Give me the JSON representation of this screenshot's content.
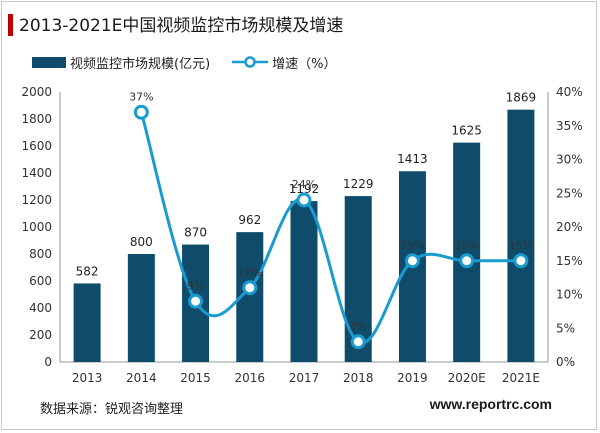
{
  "title": "2013-2021E中国视频监控市场规模及增速",
  "legend": {
    "bar_label": "视频监控市场规模(亿元)",
    "line_label": "增速（%）"
  },
  "source": "数据来源：锐观咨询整理",
  "website": "www.reportrc.com",
  "colors": {
    "bar": "#0f4c6b",
    "line": "#1a9bd0",
    "title_accent": "#c00000"
  },
  "chart_data": {
    "type": "bar",
    "categories": [
      "2013",
      "2014",
      "2015",
      "2016",
      "2017",
      "2018",
      "2019",
      "2020E",
      "2021E"
    ],
    "series": [
      {
        "name": "视频监控市场规模(亿元)",
        "type": "bar",
        "axis": "left",
        "values": [
          582,
          800,
          870,
          962,
          1192,
          1229,
          1413,
          1625,
          1869
        ]
      },
      {
        "name": "增速（%）",
        "type": "line",
        "axis": "right",
        "values": [
          null,
          37,
          9,
          11,
          24,
          3,
          15,
          15,
          15
        ],
        "labels": [
          "",
          "37%",
          "9%",
          "11%",
          "24%",
          "3%",
          "15%",
          "15%",
          "15%"
        ]
      }
    ],
    "y_left": {
      "min": 0,
      "max": 2000,
      "step": 200,
      "ticks": [
        "0",
        "200",
        "400",
        "600",
        "800",
        "1000",
        "1200",
        "1400",
        "1600",
        "1800",
        "2000"
      ]
    },
    "y_right": {
      "min": 0,
      "max": 40,
      "step": 5,
      "ticks": [
        "0%",
        "5%",
        "10%",
        "15%",
        "20%",
        "25%",
        "30%",
        "35%",
        "40%"
      ]
    },
    "grid": false,
    "legend_position": "top-left"
  }
}
